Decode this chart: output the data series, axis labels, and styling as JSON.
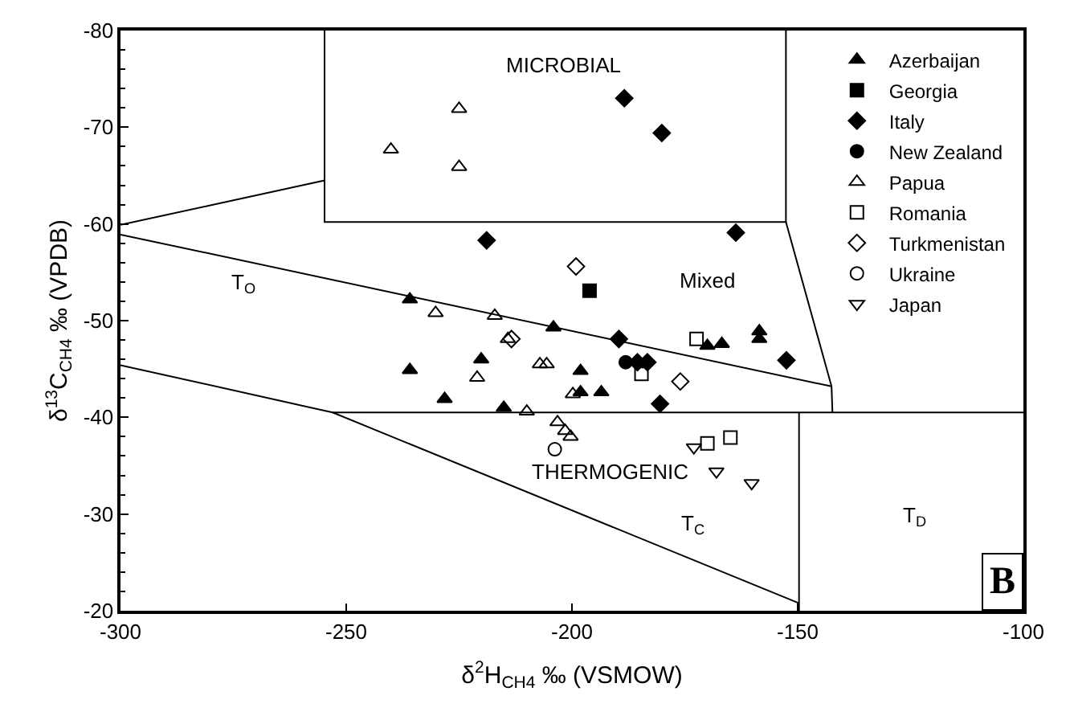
{
  "chart_data": {
    "type": "scatter",
    "xlabel": "δ$^{2}$H$_{CH4}$ ‰ (VSMOW)",
    "ylabel": "δ$^{13}$C$_{CH4}$ ‰ (VPDB)",
    "xlim": [
      -300,
      -100
    ],
    "xticks": [
      -300,
      -250,
      -200,
      -150,
      -100
    ],
    "ylim": [
      -20,
      -80
    ],
    "yticks": [
      -80,
      -70,
      -60,
      -50,
      -40,
      -30,
      -20
    ],
    "legend": "top right",
    "series": [
      {
        "name": "Azerbaijan",
        "color": "#000000",
        "marker": "triangle",
        "x": [
          -235.9,
          -204.1,
          -220.1,
          -235.9,
          -228.2,
          -215.1,
          -198.1,
          -198.1,
          -193.5,
          -170.0,
          -166.8,
          -158.5,
          -158.5
        ],
        "values": [
          -52.2,
          -49.3,
          -46.0,
          -44.9,
          -41.9,
          -41.0,
          -44.8,
          -42.6,
          -42.6,
          -47.4,
          -47.6,
          -48.9,
          -48.1
        ]
      },
      {
        "name": "Georgia",
        "color": "#000000",
        "marker": "square",
        "x": [
          -196.1
        ],
        "values": [
          -53.1
        ]
      },
      {
        "name": "Italy",
        "color": "#000000",
        "marker": "diamond",
        "x": [
          -188.4,
          -180.1,
          -218.9,
          -163.7,
          -189.6,
          -152.5,
          -185.5,
          -183.3,
          -180.5
        ],
        "values": [
          -73.0,
          -69.4,
          -58.3,
          -59.1,
          -48.1,
          -45.9,
          -45.7,
          -45.7,
          -41.4
        ]
      },
      {
        "name": "New Zealand",
        "color": "#000000",
        "marker": "circle",
        "x": [
          -188.1
        ],
        "values": [
          -45.7
        ]
      },
      {
        "name": "Papua",
        "color": "#000000",
        "marker": "triangle-open",
        "x": [
          -240.1,
          -225.0,
          -225.0,
          -230.2,
          -217.1,
          -214.2,
          -207.1,
          -205.6,
          -221.0,
          -199.8,
          -210.0,
          -203.2,
          -201.5,
          -200.3
        ],
        "values": [
          -67.7,
          -71.9,
          -65.9,
          -50.8,
          -50.5,
          -48.1,
          -45.5,
          -45.5,
          -44.1,
          -42.4,
          -40.6,
          -39.5,
          -38.6,
          -38.0
        ]
      },
      {
        "name": "Romania",
        "color": "#000000",
        "marker": "square-open",
        "x": [
          -172.4,
          -184.6,
          -170.0,
          -164.9
        ],
        "values": [
          -48.1,
          -44.5,
          -37.3,
          -37.9
        ]
      },
      {
        "name": "Turkmenistan",
        "color": "#000000",
        "marker": "diamond-open",
        "x": [
          -199.1,
          -213.4,
          -176.0
        ],
        "values": [
          -55.6,
          -48.1,
          -43.7
        ]
      },
      {
        "name": "Ukraine",
        "color": "#000000",
        "marker": "circle-open",
        "x": [
          -203.8
        ],
        "values": [
          -36.7
        ]
      },
      {
        "name": "Japan",
        "color": "#000000",
        "marker": "triangle-down-open",
        "x": [
          -173.0,
          -168.0,
          -160.2
        ],
        "values": [
          -36.9,
          -34.4,
          -33.2
        ]
      },
      {
        "type": "line",
        "color": "#000000",
        "marker": "none",
        "x": [
          -254.8,
          -254.8,
          -152.6,
          -152.6
        ],
        "values": [
          -80,
          -60.2,
          -60.2,
          -80
        ]
      },
      {
        "type": "line",
        "color": "#000000",
        "marker": "none",
        "x": [
          -300,
          -254.8
        ],
        "values": [
          -59.9,
          -64.5
        ]
      },
      {
        "type": "line",
        "color": "#000000",
        "marker": "none",
        "x": [
          -152.6,
          -142.5,
          -142.3
        ],
        "values": [
          -60.2,
          -43.2,
          -40.5
        ]
      },
      {
        "type": "line",
        "color": "#000000",
        "marker": "none",
        "x": [
          -300,
          -142.5
        ],
        "values": [
          -58.9,
          -43.2
        ]
      },
      {
        "type": "line",
        "color": "#000000",
        "marker": "none",
        "x": [
          -253.0,
          -100
        ],
        "values": [
          -40.5,
          -40.5
        ]
      },
      {
        "type": "line",
        "color": "#000000",
        "marker": "none",
        "x": [
          -300,
          -253.0,
          -149.8
        ],
        "values": [
          -45.4,
          -40.5,
          -20.8
        ]
      },
      {
        "type": "line",
        "color": "#000000",
        "marker": "none",
        "x": [
          -149.7,
          -149.7
        ],
        "values": [
          -40.5,
          -20
        ]
      }
    ],
    "annotations": [
      "MICROBIAL",
      "Mixed",
      "T$_{O}$",
      "THERMOGENIC",
      "T$_{C}$",
      "T$_{D}$",
      "B"
    ]
  }
}
